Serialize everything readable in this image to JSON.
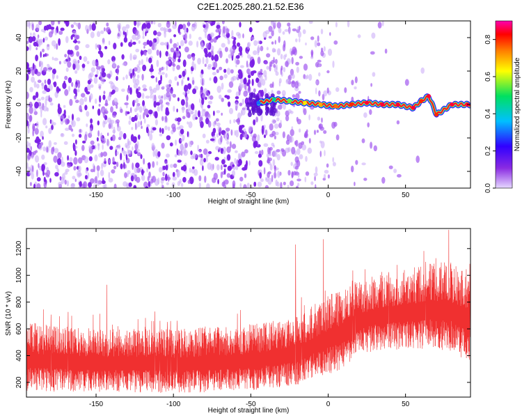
{
  "figure_title": "C2E1.2025.280.21.52.E36",
  "chart_data": [
    {
      "type": "heatmap",
      "title": "C2E1.2025.280.21.52.E36",
      "xlabel": "Height of straight line (km)",
      "ylabel": "Frequency (Hz)",
      "xlim": [
        -195,
        92
      ],
      "ylim": [
        -50,
        50
      ],
      "xticks": [
        -150,
        -100,
        -50,
        0,
        50
      ],
      "yticks": [
        -40,
        -20,
        0,
        20,
        40
      ],
      "colorbar": {
        "label": "Normalized spectral amplitude",
        "range": [
          0.0,
          0.9
        ],
        "ticks": [
          0.0,
          0.2,
          0.4,
          0.6,
          0.8
        ],
        "colors": [
          "#e6d8ff",
          "#8a2be2",
          "#3000ff",
          "#00c0ff",
          "#00e060",
          "#ffff00",
          "#ff8000",
          "#ff0000",
          "#ff00b0"
        ]
      },
      "signal_track": {
        "description": "strong narrowband line near 0 Hz from about -45 km to 90 km",
        "x": [
          -45,
          -35,
          -25,
          -15,
          -5,
          5,
          15,
          25,
          35,
          45,
          55,
          60,
          65,
          70,
          80,
          90
        ],
        "y": [
          1,
          3,
          2,
          1,
          0,
          -1,
          0,
          1,
          0,
          0,
          -2,
          2,
          5,
          -6,
          0,
          0
        ],
        "amplitude": [
          0.3,
          0.45,
          0.55,
          0.65,
          0.7,
          0.75,
          0.8,
          0.85,
          0.85,
          0.85,
          0.85,
          0.8,
          0.85,
          0.8,
          0.85,
          0.85
        ]
      },
      "background_noise": {
        "region_x": [
          -195,
          -40
        ],
        "amplitude": 0.15,
        "fades_out_by_km": 10
      }
    },
    {
      "type": "line",
      "xlabel": "Height of straight line (km)",
      "ylabel": "SNR (10 * v/v)",
      "xlim": [
        -195,
        92
      ],
      "ylim": [
        90,
        1350
      ],
      "xticks": [
        -150,
        -100,
        -50,
        0,
        50
      ],
      "yticks": [
        200,
        400,
        600,
        800,
        1000,
        1200
      ],
      "color": "#f03030",
      "envelope": {
        "x": [
          -195,
          -150,
          -100,
          -60,
          -40,
          -20,
          0,
          10,
          20,
          30,
          50,
          70,
          80,
          92
        ],
        "lower": [
          130,
          130,
          120,
          130,
          150,
          180,
          260,
          300,
          420,
          430,
          450,
          450,
          420,
          350
        ],
        "upper": [
          650,
          600,
          600,
          620,
          650,
          700,
          850,
          900,
          950,
          1000,
          1050,
          1100,
          1100,
          1000
        ],
        "spikes": [
          {
            "x": -143,
            "value": 930
          },
          {
            "x": -112,
            "value": 730
          },
          {
            "x": -21,
            "value": 1230
          },
          {
            "x": -3,
            "value": 1270
          },
          {
            "x": 78,
            "value": 1340
          }
        ]
      }
    }
  ]
}
